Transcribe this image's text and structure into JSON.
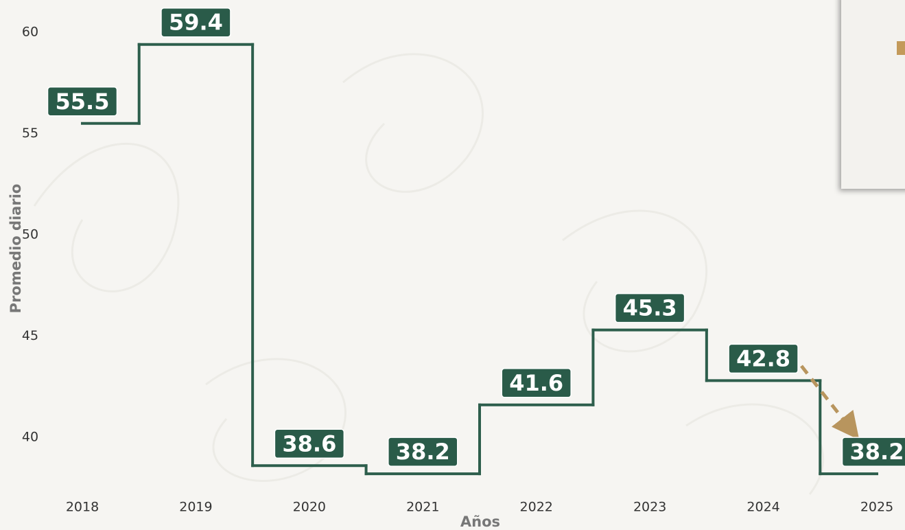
{
  "chart_data": {
    "type": "line",
    "step": "mid",
    "color": "#2d5e4c",
    "label_color": "#2a5b49",
    "x_label": "Años",
    "y_label": "Promedio diario",
    "categories": [
      "2018",
      "2019",
      "2020",
      "2021",
      "2022",
      "2023",
      "2024",
      "2025"
    ],
    "values": [
      55.5,
      59.4,
      38.6,
      38.2,
      41.6,
      45.3,
      42.8,
      38.2
    ],
    "ylim": [
      37.5,
      61.5
    ],
    "yticks": [
      40,
      45,
      50,
      55,
      60
    ],
    "grid": false
  }
}
